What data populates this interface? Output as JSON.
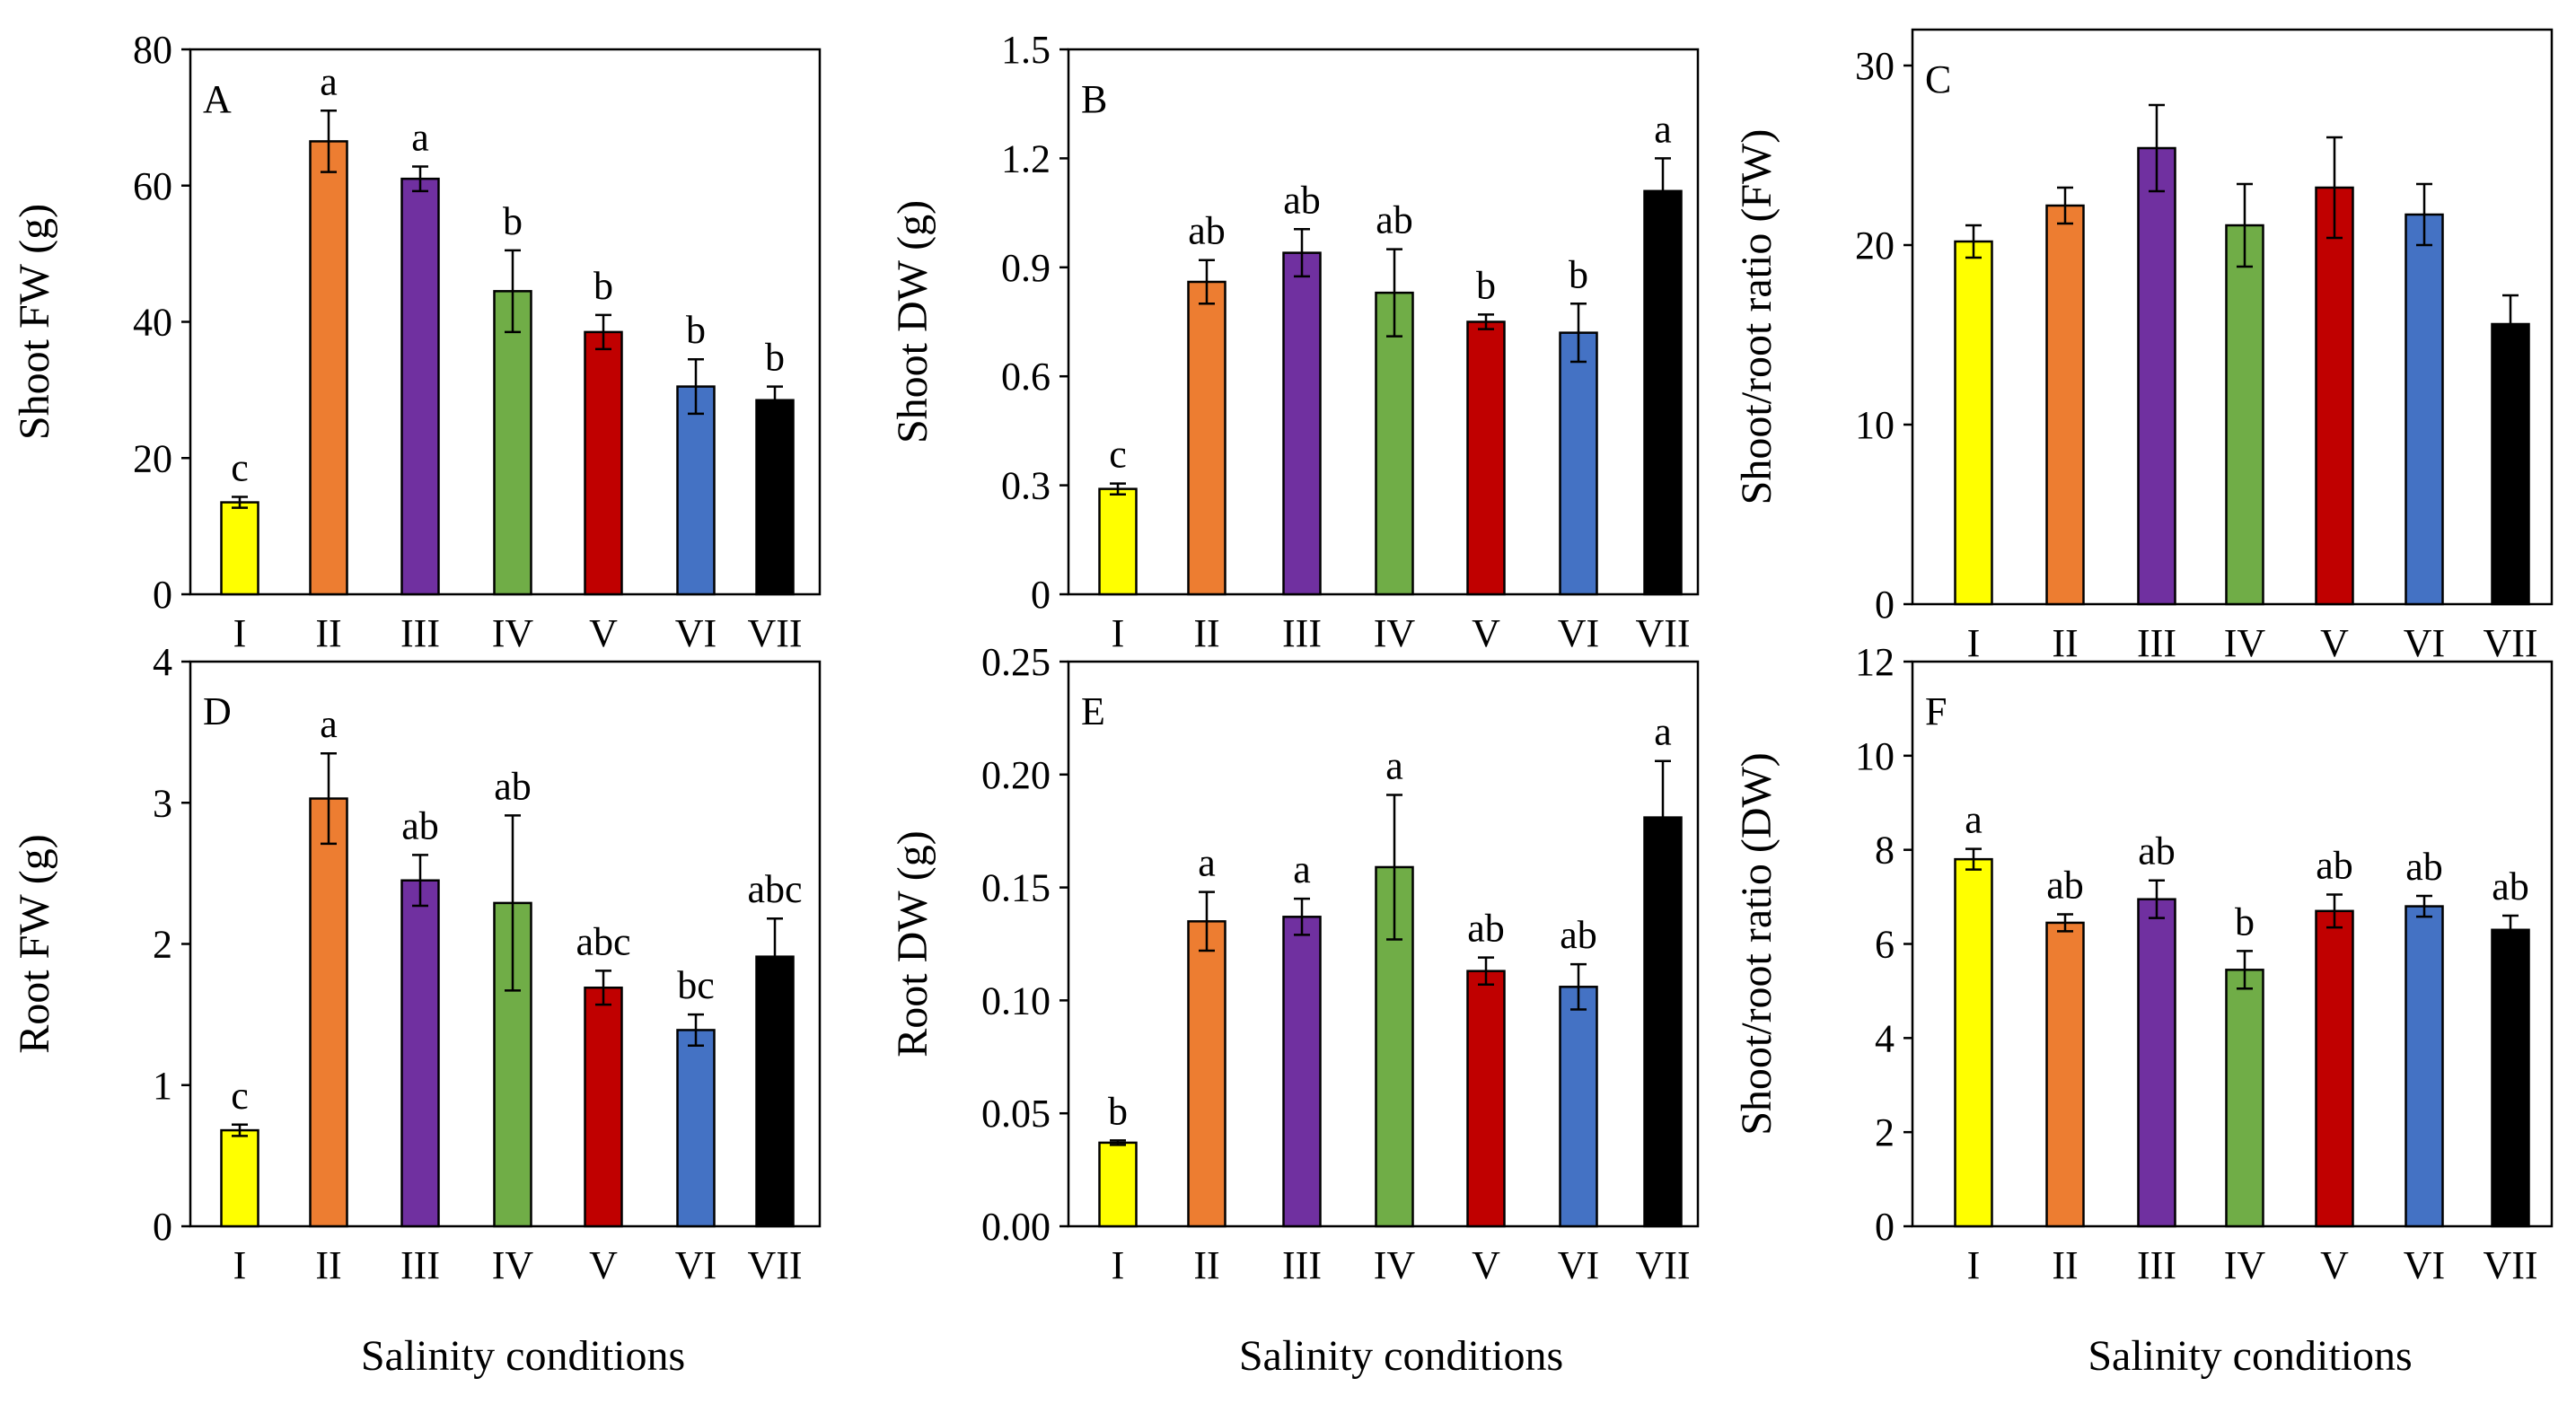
{
  "figure": {
    "categories": [
      "I",
      "II",
      "III",
      "IV",
      "V",
      "VI",
      "VII"
    ],
    "colors": [
      "#ffff00",
      "#ed7d31",
      "#7030a0",
      "#70ad47",
      "#c00000",
      "#4472c4",
      "#000000"
    ]
  },
  "chart_data": [
    {
      "type": "bar",
      "panel": "A",
      "title": "",
      "xlabel": "",
      "ylabel": "Shoot FW (g)",
      "ylim": [
        0,
        80
      ],
      "yticks": [
        0,
        20,
        40,
        60,
        80
      ],
      "ytick_labels": [
        "0",
        "20",
        "40",
        "60",
        "80"
      ],
      "categories": [
        "I",
        "II",
        "III",
        "IV",
        "V",
        "VI",
        "VII"
      ],
      "values": [
        13.5,
        66.5,
        61,
        44.5,
        38.5,
        30.5,
        28.5
      ],
      "errors": [
        0.8,
        4.5,
        1.8,
        6,
        2.5,
        4,
        2
      ],
      "letters": [
        "c",
        "a",
        "a",
        "b",
        "b",
        "b",
        "b"
      ]
    },
    {
      "type": "bar",
      "panel": "B",
      "title": "",
      "xlabel": "",
      "ylabel": "Shoot DW (g)",
      "ylim": [
        0,
        1.5
      ],
      "yticks": [
        0,
        0.3,
        0.6,
        0.9,
        1.2,
        1.5
      ],
      "ytick_labels": [
        "0",
        "0.3",
        "0.6",
        "0.9",
        "1.2",
        "1.5"
      ],
      "categories": [
        "I",
        "II",
        "III",
        "IV",
        "V",
        "VI",
        "VII"
      ],
      "values": [
        0.29,
        0.86,
        0.94,
        0.83,
        0.75,
        0.72,
        1.11
      ],
      "errors": [
        0.015,
        0.06,
        0.065,
        0.12,
        0.02,
        0.08,
        0.09
      ],
      "letters": [
        "c",
        "ab",
        "ab",
        "ab",
        "b",
        "b",
        "a"
      ]
    },
    {
      "type": "bar",
      "panel": "C",
      "title": "",
      "xlabel": "",
      "ylabel": "Shoot/root ratio (FW)",
      "ylim": [
        0,
        32
      ],
      "yticks": [
        0,
        10,
        20,
        30
      ],
      "ytick_labels": [
        "0",
        "10",
        "20",
        "30"
      ],
      "categories": [
        "I",
        "II",
        "III",
        "IV",
        "V",
        "VI",
        "VII"
      ],
      "values": [
        20.2,
        22.2,
        25.4,
        21.1,
        23.2,
        21.7,
        15.6
      ],
      "errors": [
        0.9,
        1.0,
        2.4,
        2.3,
        2.8,
        1.7,
        1.6
      ],
      "letters": []
    },
    {
      "type": "bar",
      "panel": "D",
      "title": "",
      "xlabel": "Salinity conditions",
      "ylabel": "Root FW (g)",
      "ylim": [
        0,
        4
      ],
      "yticks": [
        0,
        1,
        2,
        3,
        4
      ],
      "ytick_labels": [
        "0",
        "1",
        "2",
        "3",
        "4"
      ],
      "categories": [
        "I",
        "II",
        "III",
        "IV",
        "V",
        "VI",
        "VII"
      ],
      "values": [
        0.68,
        3.03,
        2.45,
        2.29,
        1.69,
        1.39,
        1.91
      ],
      "errors": [
        0.04,
        0.32,
        0.18,
        0.62,
        0.12,
        0.11,
        0.27
      ],
      "letters": [
        "c",
        "a",
        "ab",
        "ab",
        "abc",
        "bc",
        "abc"
      ]
    },
    {
      "type": "bar",
      "panel": "E",
      "title": "",
      "xlabel": "Salinity conditions",
      "ylabel": "Root DW (g)",
      "ylim": [
        0,
        0.25
      ],
      "yticks": [
        0,
        0.05,
        0.1,
        0.15,
        0.2,
        0.25
      ],
      "ytick_labels": [
        "0.00",
        "0.05",
        "0.10",
        "0.15",
        "0.20",
        "0.25"
      ],
      "categories": [
        "I",
        "II",
        "III",
        "IV",
        "V",
        "VI",
        "VII"
      ],
      "values": [
        0.037,
        0.135,
        0.137,
        0.159,
        0.113,
        0.106,
        0.181
      ],
      "errors": [
        0.001,
        0.013,
        0.008,
        0.032,
        0.006,
        0.01,
        0.025
      ],
      "letters": [
        "b",
        "a",
        "a",
        "a",
        "ab",
        "ab",
        "a"
      ]
    },
    {
      "type": "bar",
      "panel": "F",
      "title": "",
      "xlabel": "Salinity conditions",
      "ylabel": "Shoot/root ratio (DW)",
      "ylim": [
        0,
        12
      ],
      "yticks": [
        0,
        2,
        4,
        6,
        8,
        10,
        12
      ],
      "ytick_labels": [
        "0",
        "2",
        "4",
        "6",
        "8",
        "10",
        "12"
      ],
      "categories": [
        "I",
        "II",
        "III",
        "IV",
        "V",
        "VI",
        "VII"
      ],
      "values": [
        7.8,
        6.45,
        6.95,
        5.45,
        6.7,
        6.8,
        6.3
      ],
      "errors": [
        0.22,
        0.18,
        0.4,
        0.4,
        0.35,
        0.22,
        0.3
      ],
      "letters": [
        "a",
        "ab",
        "ab",
        "b",
        "ab",
        "ab",
        "ab"
      ]
    }
  ]
}
